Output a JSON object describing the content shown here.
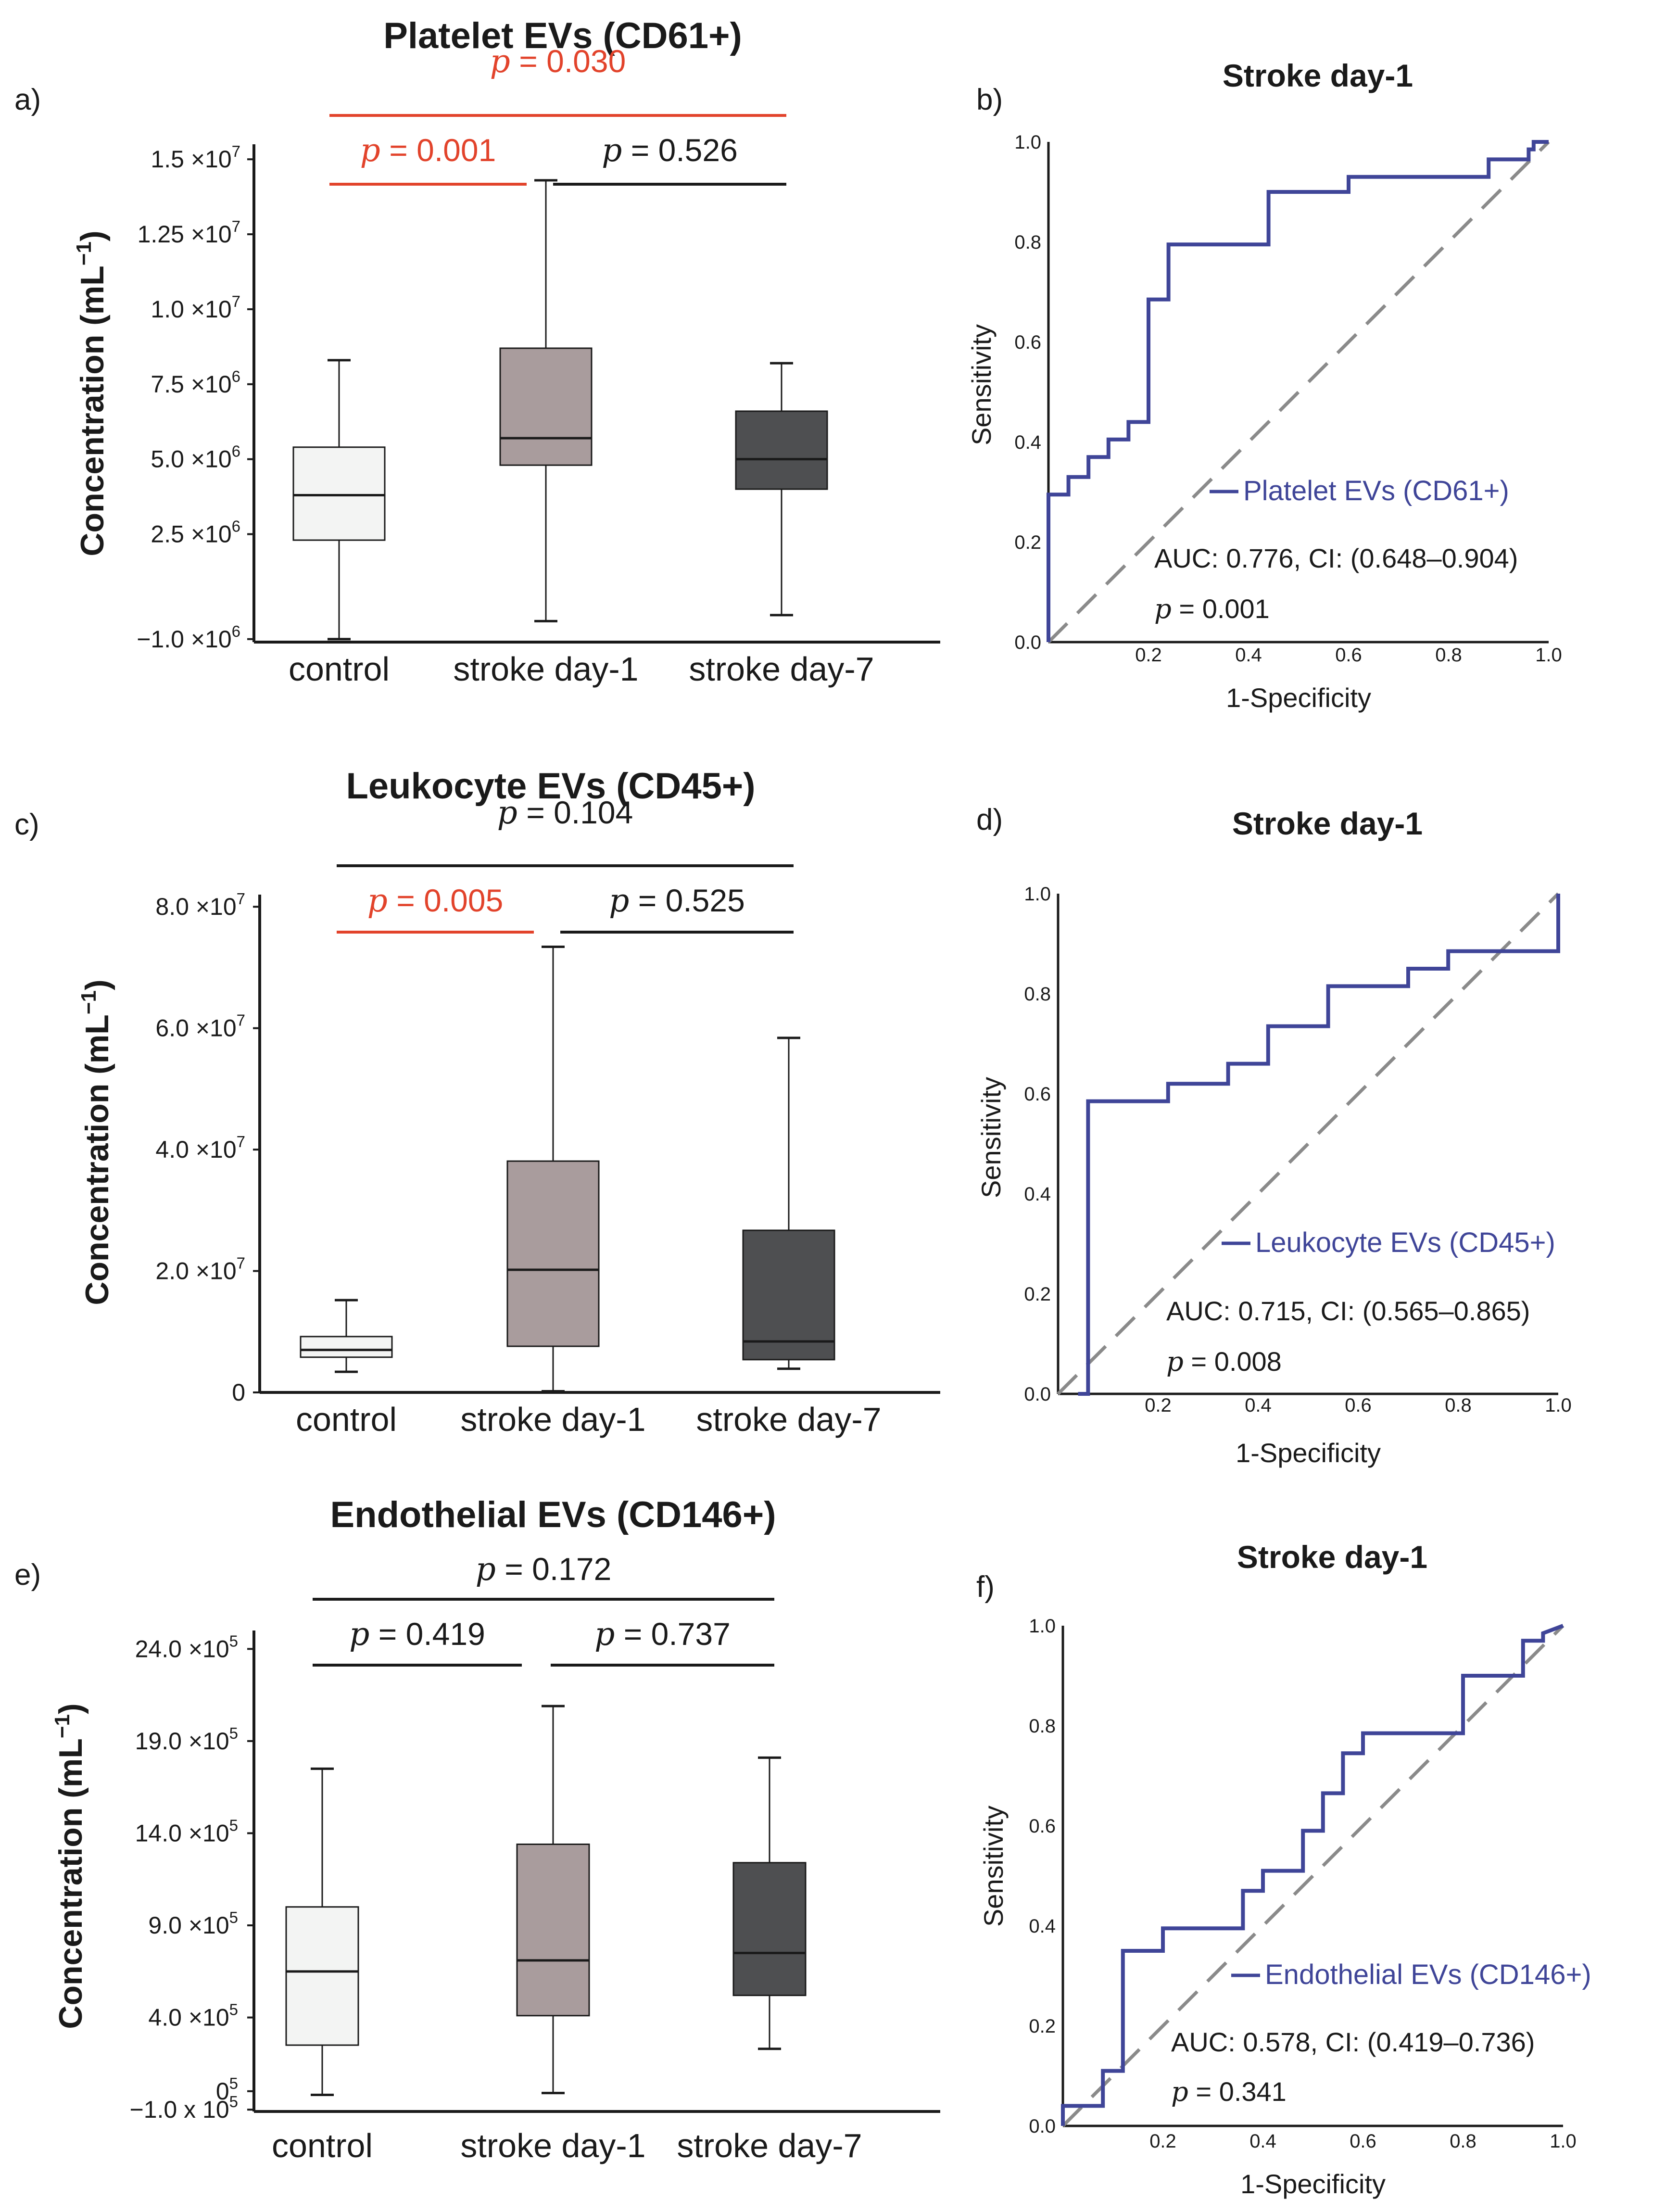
{
  "colors": {
    "sig": "#e2432b",
    "ns": "#1a1a1a",
    "roc_line": "#3f4598",
    "diag": "#8a8a8a",
    "box_control": "#f3f4f3",
    "box_day1": "#a99c9d",
    "box_day7": "#4e4f51"
  },
  "box_panels": [
    {
      "letter": "a)",
      "title": "Platelet EVs (CD61+)",
      "ylabel": "Concentration (mL",
      "ylabel_sup": "−1",
      "ylabel_close": ")",
      "categories": [
        "control",
        "stroke day-1",
        "stroke day-7"
      ],
      "ylim": [
        -1100000.0,
        15800000.0
      ],
      "ticks": [
        {
          "value": 15000000.0,
          "mant": "1.5 ×10",
          "exp": "7"
        },
        {
          "value": 12500000.0,
          "mant": "1.25 ×10",
          "exp": "7"
        },
        {
          "value": 10000000.0,
          "mant": "1.0 ×10",
          "exp": "7"
        },
        {
          "value": 7500000.0,
          "mant": "7.5 ×10",
          "exp": "6"
        },
        {
          "value": 5000000.0,
          "mant": "5.0 ×10",
          "exp": "6"
        },
        {
          "value": 2500000.0,
          "mant": "2.5 ×10",
          "exp": "6"
        },
        {
          "value": -1000000.0,
          "mant": "−1.0 ×10",
          "exp": "6"
        }
      ],
      "boxes": [
        {
          "min": -1000000.0,
          "q1": 2300000.0,
          "median": 3800000.0,
          "q3": 5400000.0,
          "max": 8300000.0
        },
        {
          "min": -400000.0,
          "q1": 4800000.0,
          "median": 5700000.0,
          "q3": 8700000.0,
          "max": 14300000.0
        },
        {
          "min": -200000.0,
          "q1": 4000000.0,
          "median": 5000000.0,
          "q3": 6600000.0,
          "max": 8200000.0
        }
      ],
      "comparisons": [
        {
          "from": 0,
          "to": 2,
          "level": 2,
          "p": "0.030",
          "significant": true
        },
        {
          "from": 0,
          "to": 1,
          "level": 1,
          "p": "0.001",
          "significant": true
        },
        {
          "from": 1,
          "to": 2,
          "level": 1,
          "p": "0.526",
          "significant": false
        }
      ]
    },
    {
      "letter": "c)",
      "title": "Leukocyte EVs (CD45+)",
      "ylabel": "Concentration (mL",
      "ylabel_sup": "−1",
      "ylabel_close": ")",
      "categories": [
        "control",
        "stroke day-1",
        "stroke day-7"
      ],
      "ylim": [
        0,
        83000000.0
      ],
      "ticks": [
        {
          "value": 80000000.0,
          "mant": "8.0 ×10",
          "exp": "7"
        },
        {
          "value": 60000000.0,
          "mant": "6.0 ×10",
          "exp": "7"
        },
        {
          "value": 40000000.0,
          "mant": "4.0 ×10",
          "exp": "7"
        },
        {
          "value": 20000000.0,
          "mant": "2.0 ×10",
          "exp": "7"
        },
        {
          "value": 0,
          "mant": "0",
          "exp": ""
        }
      ],
      "boxes": [
        {
          "min": 3400000.0,
          "q1": 5800000.0,
          "median": 7000000.0,
          "q3": 9200000.0,
          "max": 15200000.0
        },
        {
          "min": 200000.0,
          "q1": 7600000.0,
          "median": 20200000.0,
          "q3": 38100000.0,
          "max": 73400000.0
        },
        {
          "min": 3900000.0,
          "q1": 5400000.0,
          "median": 8400000.0,
          "q3": 26700000.0,
          "max": 58400000.0
        }
      ],
      "comparisons": [
        {
          "from": 0,
          "to": 2,
          "level": 2,
          "p": "0.104",
          "significant": false
        },
        {
          "from": 0,
          "to": 1,
          "level": 1,
          "p": "0.005",
          "significant": true
        },
        {
          "from": 1,
          "to": 2,
          "level": 1,
          "p": "0.525",
          "significant": false
        }
      ]
    },
    {
      "letter": "e)",
      "title": "Endothelial EVs (CD146+)",
      "ylabel": "Concentration (mL",
      "ylabel_sup": "−1",
      "ylabel_close": ")",
      "categories": [
        "control",
        "stroke day-1",
        "stroke day-7"
      ],
      "ylim": [
        -110000.0,
        2550000.0
      ],
      "ticks": [
        {
          "value": 2400000.0,
          "mant": "24.0 ×10",
          "exp": "5"
        },
        {
          "value": 1900000.0,
          "mant": "19.0 ×10",
          "exp": "5"
        },
        {
          "value": 1400000.0,
          "mant": "14.0 ×10",
          "exp": "5"
        },
        {
          "value": 900000.0,
          "mant": "9.0 ×10",
          "exp": "5"
        },
        {
          "value": 400000.0,
          "mant": "4.0 ×10",
          "exp": "5"
        },
        {
          "value": 0,
          "mant": "0",
          "exp": "5"
        },
        {
          "value": -100000.0,
          "mant": "−1.0 x 10",
          "exp": "5"
        }
      ],
      "boxes": [
        {
          "min": -20000.0,
          "q1": 250000.0,
          "median": 650000.0,
          "q3": 1000000.0,
          "max": 1750000.0
        },
        {
          "min": -10000.0,
          "q1": 410000.0,
          "median": 710000.0,
          "q3": 1340000.0,
          "max": 2090000.0
        },
        {
          "min": 230000.0,
          "q1": 520000.0,
          "median": 750000.0,
          "q3": 1240000.0,
          "max": 1810000.0
        }
      ],
      "comparisons": [
        {
          "from": 0,
          "to": 2,
          "level": 2,
          "p": "0.172",
          "significant": false
        },
        {
          "from": 0,
          "to": 1,
          "level": 1,
          "p": "0.419",
          "significant": false
        },
        {
          "from": 1,
          "to": 2,
          "level": 1,
          "p": "0.737",
          "significant": false
        }
      ]
    }
  ],
  "roc_panels": [
    {
      "letter": "b)",
      "title": "Stroke day-1",
      "xlabel": "1-Specificity",
      "ylabel": "Sensitivity",
      "legend": "Platelet EVs (CD61+)",
      "auc_text": "AUC: 0.776, CI: (0.648–0.904)",
      "p": "0.001",
      "xticks": [
        "0.2",
        "0.4",
        "0.6",
        "0.8",
        "1.0"
      ],
      "yticks": [
        "0.0",
        "0.2",
        "0.4",
        "0.6",
        "0.8",
        "1.0"
      ],
      "curve": [
        [
          0,
          0
        ],
        [
          0,
          0.295
        ],
        [
          0.04,
          0.295
        ],
        [
          0.04,
          0.33
        ],
        [
          0.08,
          0.33
        ],
        [
          0.08,
          0.37
        ],
        [
          0.12,
          0.37
        ],
        [
          0.12,
          0.405
        ],
        [
          0.16,
          0.405
        ],
        [
          0.16,
          0.44
        ],
        [
          0.2,
          0.44
        ],
        [
          0.2,
          0.685
        ],
        [
          0.24,
          0.685
        ],
        [
          0.24,
          0.795
        ],
        [
          0.44,
          0.795
        ],
        [
          0.44,
          0.9
        ],
        [
          0.6,
          0.9
        ],
        [
          0.6,
          0.93
        ],
        [
          0.88,
          0.93
        ],
        [
          0.88,
          0.965
        ],
        [
          0.96,
          0.965
        ],
        [
          0.96,
          0.985
        ],
        [
          0.97,
          0.985
        ],
        [
          0.97,
          1.0
        ],
        [
          1.0,
          1.0
        ]
      ]
    },
    {
      "letter": "d)",
      "title": "Stroke day-1",
      "xlabel": "1-Specificity",
      "ylabel": "Sensitivity",
      "legend": "Leukocyte EVs (CD45+)",
      "auc_text": "AUC: 0.715, CI: (0.565–0.865)",
      "p": "0.008",
      "xticks": [
        "0.2",
        "0.4",
        "0.6",
        "0.8",
        "1.0"
      ],
      "yticks": [
        "0.0",
        "0.2",
        "0.4",
        "0.6",
        "0.8",
        "1.0"
      ],
      "curve": [
        [
          0.04,
          0
        ],
        [
          0.06,
          0
        ],
        [
          0.06,
          0.585
        ],
        [
          0.22,
          0.585
        ],
        [
          0.22,
          0.62
        ],
        [
          0.34,
          0.62
        ],
        [
          0.34,
          0.66
        ],
        [
          0.42,
          0.66
        ],
        [
          0.42,
          0.735
        ],
        [
          0.54,
          0.735
        ],
        [
          0.54,
          0.815
        ],
        [
          0.7,
          0.815
        ],
        [
          0.7,
          0.85
        ],
        [
          0.78,
          0.85
        ],
        [
          0.78,
          0.885
        ],
        [
          1.0,
          0.885
        ],
        [
          1.0,
          1.0
        ]
      ]
    },
    {
      "letter": "f)",
      "title": "Stroke day-1",
      "xlabel": "1-Specificity",
      "ylabel": "Sensitivity",
      "legend": "Endothelial EVs (CD146+)",
      "auc_text": "AUC: 0.578, CI: (0.419–0.736)",
      "p": "0.341",
      "xticks": [
        "0.2",
        "0.4",
        "0.6",
        "0.8",
        "1.0"
      ],
      "yticks": [
        "0.0",
        "0.2",
        "0.4",
        "0.6",
        "0.8",
        "1.0"
      ],
      "curve": [
        [
          0,
          0
        ],
        [
          0,
          0.04
        ],
        [
          0.08,
          0.04
        ],
        [
          0.08,
          0.11
        ],
        [
          0.12,
          0.11
        ],
        [
          0.12,
          0.35
        ],
        [
          0.2,
          0.35
        ],
        [
          0.2,
          0.395
        ],
        [
          0.36,
          0.395
        ],
        [
          0.36,
          0.47
        ],
        [
          0.4,
          0.47
        ],
        [
          0.4,
          0.51
        ],
        [
          0.48,
          0.51
        ],
        [
          0.48,
          0.59
        ],
        [
          0.52,
          0.59
        ],
        [
          0.52,
          0.665
        ],
        [
          0.56,
          0.665
        ],
        [
          0.56,
          0.745
        ],
        [
          0.6,
          0.745
        ],
        [
          0.6,
          0.785
        ],
        [
          0.8,
          0.785
        ],
        [
          0.8,
          0.9
        ],
        [
          0.92,
          0.9
        ],
        [
          0.92,
          0.97
        ],
        [
          0.96,
          0.97
        ],
        [
          0.96,
          0.985
        ],
        [
          1.0,
          1.0
        ]
      ]
    }
  ],
  "chart_data": [
    {
      "type": "box",
      "title": "Platelet EVs (CD61+)",
      "ylabel": "Concentration (mL−1)",
      "categories": [
        "control",
        "stroke day-1",
        "stroke day-7"
      ],
      "ylim": [
        -1000000,
        15000000
      ],
      "series": [
        {
          "name": "control",
          "min": -1000000,
          "q1": 2300000,
          "median": 3800000,
          "q3": 5400000,
          "max": 8300000
        },
        {
          "name": "stroke day-1",
          "min": -400000,
          "q1": 4800000,
          "median": 5700000,
          "q3": 8700000,
          "max": 14300000
        },
        {
          "name": "stroke day-7",
          "min": -200000,
          "q1": 4000000,
          "median": 5000000,
          "q3": 6600000,
          "max": 8200000
        }
      ],
      "annotations": [
        "p = 0.030 (control vs stroke day-7)",
        "p = 0.001 (control vs stroke day-1)",
        "p = 0.526 (stroke day-1 vs stroke day-7)"
      ]
    },
    {
      "type": "line",
      "title": "Stroke day-1 ROC – Platelet EVs (CD61+)",
      "xlabel": "1-Specificity",
      "ylabel": "Sensitivity",
      "xlim": [
        0,
        1
      ],
      "ylim": [
        0,
        1
      ],
      "annotations": [
        "AUC: 0.776, CI: (0.648–0.904)",
        "p = 0.001"
      ]
    },
    {
      "type": "box",
      "title": "Leukocyte EVs (CD45+)",
      "ylabel": "Concentration (mL−1)",
      "categories": [
        "control",
        "stroke day-1",
        "stroke day-7"
      ],
      "ylim": [
        0,
        80000000
      ],
      "series": [
        {
          "name": "control",
          "min": 3400000,
          "q1": 5800000,
          "median": 7000000,
          "q3": 9200000,
          "max": 15200000
        },
        {
          "name": "stroke day-1",
          "min": 200000,
          "q1": 7600000,
          "median": 20200000,
          "q3": 38100000,
          "max": 73400000
        },
        {
          "name": "stroke day-7",
          "min": 3900000,
          "q1": 5400000,
          "median": 8400000,
          "q3": 26700000,
          "max": 58400000
        }
      ],
      "annotations": [
        "p = 0.104 (control vs stroke day-7)",
        "p = 0.005 (control vs stroke day-1)",
        "p = 0.525 (stroke day-1 vs stroke day-7)"
      ]
    },
    {
      "type": "line",
      "title": "Stroke day-1 ROC – Leukocyte EVs (CD45+)",
      "xlabel": "1-Specificity",
      "ylabel": "Sensitivity",
      "xlim": [
        0,
        1
      ],
      "ylim": [
        0,
        1
      ],
      "annotations": [
        "AUC: 0.715, CI: (0.565–0.865)",
        "p = 0.008"
      ]
    },
    {
      "type": "box",
      "title": "Endothelial EVs (CD146+)",
      "ylabel": "Concentration (mL−1)",
      "categories": [
        "control",
        "stroke day-1",
        "stroke day-7"
      ],
      "ylim": [
        -100000,
        2400000
      ],
      "series": [
        {
          "name": "control",
          "min": -20000,
          "q1": 250000,
          "median": 650000,
          "q3": 1000000,
          "max": 1750000
        },
        {
          "name": "stroke day-1",
          "min": -10000,
          "q1": 410000,
          "median": 710000,
          "q3": 1340000,
          "max": 2090000
        },
        {
          "name": "stroke day-7",
          "min": 230000,
          "q1": 520000,
          "median": 750000,
          "q3": 1240000,
          "max": 1810000
        }
      ],
      "annotations": [
        "p = 0.172 (control vs stroke day-7)",
        "p = 0.419 (control vs stroke day-1)",
        "p = 0.737 (stroke day-1 vs stroke day-7)"
      ]
    },
    {
      "type": "line",
      "title": "Stroke day-1 ROC – Endothelial EVs (CD146+)",
      "xlabel": "1-Specificity",
      "ylabel": "Sensitivity",
      "xlim": [
        0,
        1
      ],
      "ylim": [
        0,
        1
      ],
      "annotations": [
        "AUC: 0.578, CI: (0.419–0.736)",
        "p = 0.341"
      ]
    }
  ]
}
